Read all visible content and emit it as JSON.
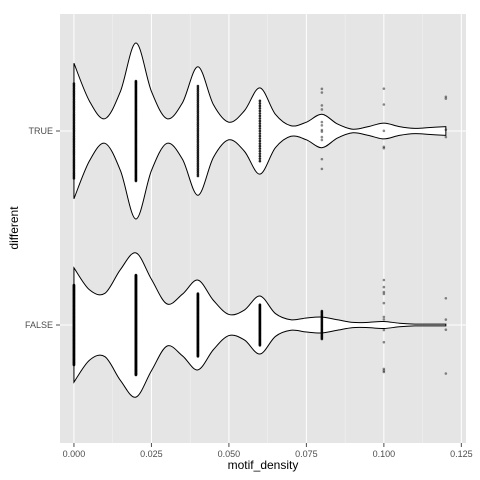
{
  "chart_data": {
    "type": "violin",
    "orientation": "horizontal",
    "xlabel": "motif_density",
    "ylabel": "different",
    "xlim": [
      -0.0045,
      0.1265
    ],
    "x_ticks": [
      0.0,
      0.025,
      0.05,
      0.075,
      0.1,
      0.125
    ],
    "x_tick_labels": [
      "0.000",
      "0.025",
      "0.050",
      "0.075",
      "0.100",
      "0.125"
    ],
    "categories": [
      "FALSE",
      "TRUE"
    ],
    "grid": true,
    "background_color": "#e5e5e5",
    "grid_color": "#ffffff",
    "violin_fill": "#ffffff",
    "violin_stroke": "#000000",
    "point_color": "#000000",
    "series": [
      {
        "name": "TRUE",
        "density_x": [
          0.0,
          0.005,
          0.01,
          0.015,
          0.02,
          0.025,
          0.03,
          0.035,
          0.04,
          0.045,
          0.05,
          0.055,
          0.06,
          0.065,
          0.07,
          0.075,
          0.08,
          0.085,
          0.09,
          0.095,
          0.1,
          0.105,
          0.11,
          0.115,
          0.12
        ],
        "density_halfwidth": [
          0.77,
          0.34,
          0.14,
          0.45,
          1.0,
          0.45,
          0.14,
          0.32,
          0.73,
          0.3,
          0.1,
          0.23,
          0.49,
          0.19,
          0.06,
          0.1,
          0.19,
          0.08,
          0.02,
          0.05,
          0.09,
          0.05,
          0.03,
          0.04,
          0.05
        ],
        "points": [
          {
            "x": 0.0,
            "n": 60
          },
          {
            "x": 0.02,
            "n": 120
          },
          {
            "x": 0.04,
            "n": 50
          },
          {
            "x": 0.06,
            "n": 25
          },
          {
            "x": 0.08,
            "n": 12
          },
          {
            "x": 0.1,
            "n": 5
          },
          {
            "x": 0.12,
            "n": 4
          }
        ]
      },
      {
        "name": "FALSE",
        "density_x": [
          0.0,
          0.005,
          0.01,
          0.015,
          0.02,
          0.025,
          0.03,
          0.035,
          0.04,
          0.045,
          0.05,
          0.055,
          0.06,
          0.065,
          0.07,
          0.075,
          0.08,
          0.085,
          0.09,
          0.095,
          0.1,
          0.105,
          0.11,
          0.115,
          0.12
        ],
        "density_halfwidth": [
          0.65,
          0.4,
          0.36,
          0.63,
          0.82,
          0.52,
          0.24,
          0.35,
          0.51,
          0.28,
          0.12,
          0.17,
          0.33,
          0.13,
          0.06,
          0.08,
          0.09,
          0.06,
          0.03,
          0.03,
          0.04,
          0.02,
          0.01,
          0.01,
          0.01
        ],
        "points": [
          {
            "x": 0.0,
            "n": 140
          },
          {
            "x": 0.02,
            "n": 260
          },
          {
            "x": 0.04,
            "n": 110
          },
          {
            "x": 0.06,
            "n": 60
          },
          {
            "x": 0.08,
            "n": 25
          },
          {
            "x": 0.1,
            "n": 12
          },
          {
            "x": 0.12,
            "n": 4
          }
        ]
      }
    ]
  }
}
